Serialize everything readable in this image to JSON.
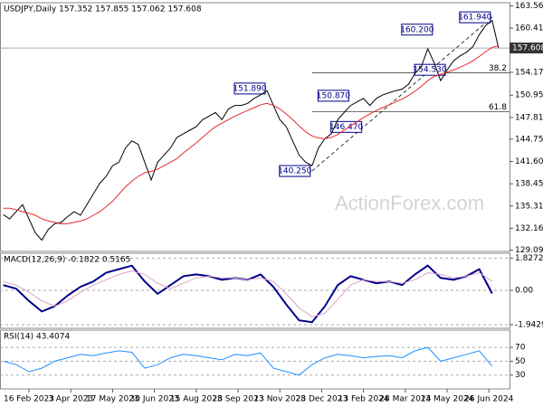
{
  "chart_data": [
    {
      "type": "line",
      "title": "USDJPY,Daily 157.352 157.855 157.062 157.608",
      "xlim": [
        -0.5,
        78.7
      ],
      "ylim": [
        128.9,
        164.0
      ],
      "yticks": [
        {
          "value": 163.56,
          "label": "163.560"
        },
        {
          "value": 160.41,
          "label": "160.410"
        },
        {
          "value": 154.17,
          "label": "154.170"
        },
        {
          "value": 150.95,
          "label": "150.950"
        },
        {
          "value": 147.81,
          "label": "147.810"
        },
        {
          "value": 144.75,
          "label": "144.750"
        },
        {
          "value": 141.6,
          "label": "141.600"
        },
        {
          "value": 138.45,
          "label": "138.450"
        },
        {
          "value": 135.31,
          "label": "135.310"
        },
        {
          "value": 132.16,
          "label": "132.160"
        },
        {
          "value": 129.09,
          "label": "129.090"
        }
      ],
      "last_price": 157.608,
      "series": [
        {
          "color": "#000000",
          "values": [
            134.1,
            133.5,
            134.5,
            135.5,
            133.5,
            131.5,
            130.5,
            132.0,
            132.8,
            133.0,
            133.8,
            134.5,
            134.0,
            135.5,
            137.0,
            138.5,
            139.5,
            141.0,
            141.5,
            143.5,
            144.5,
            144.0,
            141.5,
            139.0,
            141.5,
            142.5,
            143.5,
            145.0,
            145.5,
            146.0,
            146.5,
            147.5,
            148.0,
            148.5,
            147.5,
            149.0,
            149.5,
            149.5,
            149.8,
            150.5,
            151.0,
            151.6,
            149.5,
            147.5,
            146.5,
            144.5,
            142.5,
            141.5,
            141.0,
            143.5,
            144.8,
            145.5,
            147.5,
            148.5,
            149.5,
            150.0,
            150.5,
            149.5,
            150.5,
            151.0,
            151.3,
            151.6,
            151.8,
            152.5,
            154.0,
            155.0,
            157.5,
            155.5,
            153.0,
            154.5,
            155.8,
            156.5,
            157.0,
            157.8,
            159.5,
            160.8,
            161.5,
            157.6
          ]
        },
        {
          "color": "#e8282b",
          "values": [
            135,
            135,
            134.8,
            134.5,
            134.3,
            134,
            133.5,
            133.2,
            133,
            132.8,
            132.8,
            133,
            133.2,
            133.5,
            134,
            134.5,
            135.2,
            136,
            137,
            138,
            138.8,
            139.5,
            140,
            140.2,
            140.5,
            141,
            141.5,
            142,
            142.8,
            143.5,
            144.2,
            145,
            145.8,
            146.5,
            147,
            147.5,
            148,
            148.4,
            148.8,
            149.2,
            149.6,
            149.8,
            149.5,
            149,
            148.3,
            147.5,
            146.6,
            145.8,
            145.2,
            144.9,
            144.8,
            145,
            145.4,
            146,
            146.6,
            147.2,
            147.8,
            148.3,
            148.8,
            149.2,
            149.6,
            150,
            150.4,
            150.9,
            151.5,
            152.2,
            153,
            153.6,
            153.9,
            154.2,
            154.5,
            154.9,
            155.3,
            155.8,
            156.4,
            157.1,
            157.7,
            157.9
          ]
        }
      ],
      "annotations": [
        {
          "label": "161.940",
          "x": 76,
          "value": 161.94
        },
        {
          "label": "160.200",
          "x": 67,
          "value": 160.2
        },
        {
          "label": "154.530",
          "x": 69,
          "value": 154.53
        },
        {
          "label": "151.890",
          "x": 41,
          "value": 151.89
        },
        {
          "label": "150.870",
          "x": 54,
          "value": 150.87
        },
        {
          "label": "146.470",
          "x": 56,
          "value": 146.47
        },
        {
          "label": "140.250",
          "x": 48,
          "value": 140.25
        }
      ],
      "levels": [
        {
          "label": "38.2",
          "value": 154.1
        },
        {
          "label": "61.8",
          "value": 148.6
        }
      ],
      "watermark": "ActionForex.com"
    },
    {
      "type": "line",
      "title": "MACD(12,26,9) -0.1822 0.5165",
      "x": [
        0,
        2,
        4,
        6,
        8,
        10,
        12,
        14,
        16,
        18,
        20,
        22,
        24,
        26,
        28,
        30,
        32,
        34,
        36,
        38,
        40,
        42,
        44,
        46,
        48,
        50,
        52,
        54,
        56,
        58,
        60,
        62,
        64,
        66,
        68,
        70,
        72,
        74,
        76
      ],
      "xlim": [
        -0.5,
        78.7
      ],
      "ylim": [
        -2.15,
        2.1
      ],
      "yticks": [
        1.8272,
        {
          "value": 0,
          "label": "0.00"
        },
        -1.9429
      ],
      "series": [
        {
          "color": "#00008b",
          "values": [
            0.3,
            0.1,
            -0.6,
            -1.2,
            -0.9,
            -0.3,
            0.2,
            0.5,
            1.0,
            1.2,
            1.4,
            0.5,
            -0.2,
            0.3,
            0.8,
            0.9,
            0.8,
            0.6,
            0.7,
            0.6,
            0.9,
            0.2,
            -0.8,
            -1.7,
            -1.8,
            -0.9,
            0.3,
            0.8,
            0.6,
            0.4,
            0.5,
            0.3,
            0.9,
            1.4,
            0.7,
            0.6,
            0.8,
            1.2,
            -0.18
          ]
        },
        {
          "color": "#d9a3c6",
          "values": [
            0.5,
            0.3,
            -0.1,
            -0.6,
            -0.9,
            -0.6,
            -0.1,
            0.3,
            0.6,
            0.9,
            1.1,
            0.9,
            0.4,
            0.1,
            0.4,
            0.7,
            0.8,
            0.7,
            0.7,
            0.6,
            0.7,
            0.5,
            -0.2,
            -1.0,
            -1.5,
            -1.3,
            -0.5,
            0.3,
            0.6,
            0.5,
            0.5,
            0.4,
            0.6,
            1.0,
            0.9,
            0.7,
            0.8,
            1.0,
            0.52
          ]
        }
      ]
    },
    {
      "type": "line",
      "title": "RSI(14) 43.4074",
      "x": [
        0,
        2,
        4,
        6,
        8,
        10,
        12,
        14,
        16,
        18,
        20,
        22,
        24,
        26,
        28,
        30,
        32,
        34,
        36,
        38,
        40,
        42,
        44,
        46,
        48,
        50,
        52,
        54,
        56,
        58,
        60,
        62,
        64,
        66,
        68,
        70,
        72,
        74,
        76
      ],
      "xlim": [
        -0.5,
        78.7
      ],
      "ylim": [
        10,
        95
      ],
      "yticks": [
        70,
        50,
        30
      ],
      "series": [
        {
          "color": "#1e90ff",
          "values": [
            50,
            45,
            35,
            40,
            50,
            55,
            60,
            58,
            62,
            65,
            63,
            40,
            45,
            55,
            60,
            58,
            55,
            52,
            60,
            58,
            62,
            40,
            35,
            30,
            45,
            55,
            60,
            58,
            55,
            57,
            58,
            55,
            65,
            70,
            50,
            55,
            60,
            65,
            43
          ]
        }
      ],
      "xticks": [
        {
          "value": 4,
          "label": "16 Feb 2023"
        },
        {
          "value": 10.5,
          "label": "3 Apr 2023"
        },
        {
          "value": 17,
          "label": "17 May 2023"
        },
        {
          "value": 23.5,
          "label": "30 Jun 2023"
        },
        {
          "value": 30,
          "label": "15 Aug 2023"
        },
        {
          "value": 36.5,
          "label": "28 Sep 2023"
        },
        {
          "value": 43,
          "label": "13 Nov 2023"
        },
        {
          "value": 49.5,
          "label": "28 Dec 2023"
        },
        {
          "value": 56,
          "label": "13 Feb 2024"
        },
        {
          "value": 62.5,
          "label": "28 Mar 2024"
        },
        {
          "value": 69,
          "label": "13 May 2024"
        },
        {
          "value": 75.5,
          "label": "26 Jun 2024"
        }
      ]
    }
  ]
}
